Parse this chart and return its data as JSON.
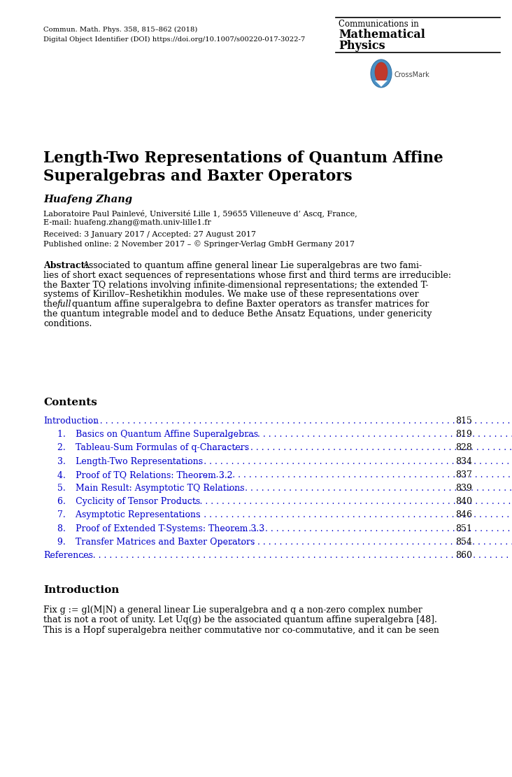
{
  "bg_color": "#ffffff",
  "journal_line1": "Commun. Math. Phys. 358, 815–862 (2018)",
  "journal_line2": "Digital Object Identifier (DOI) https://doi.org/10.1007/s00220-017-3022-7",
  "journal_name_line1": "Communications in",
  "journal_name_line2": "Mathematical",
  "journal_name_line3": "Physics",
  "title_line1": "Length-Two Representations of Quantum Affine",
  "title_line2": "Superalgebras and Baxter Operators",
  "author": "Huafeng Zhang",
  "affil1": "Laboratoire Paul Painlevé, Université Lille 1, 59655 Villeneuve d’ Ascq, France,",
  "affil2": "E-mail: huafeng.zhang@math.univ-lille1.fr",
  "received": "Received: 3 January 2017 / Accepted: 27 August 2017",
  "published": "Published online: 2 November 2017 – © Springer-Verlag GmbH Germany 2017",
  "abstract_label": "Abstract:",
  "abstract_lines": [
    "  Associated to quantum affine general linear Lie superalgebras are two fami-",
    "lies of short exact sequences of representations whose first and third terms are irreducible:",
    "the Baxter TQ relations involving infinite-dimensional representations; the extended T-",
    "systems of Kirillov–Reshetikhin modules. We make use of these representations over",
    "the [italic:full] quantum affine superalgebra to define Baxter operators as transfer matrices for",
    "the quantum integrable model and to deduce Bethe Ansatz Equations, under genericity",
    "conditions."
  ],
  "contents_label": "Contents",
  "toc": [
    {
      "label": "Introduction",
      "indent": 0,
      "page": "815"
    },
    {
      "label": "1.   Basics on Quantum Affine Superalgebras",
      "indent": 1,
      "page": "819"
    },
    {
      "label": "2.   Tableau-Sum Formulas of q-Characters",
      "indent": 1,
      "page": "828"
    },
    {
      "label": "3.   Length-Two Representations",
      "indent": 1,
      "page": "834"
    },
    {
      "label": "4.   Proof of TQ Relations: Theorem 3.2",
      "indent": 1,
      "page": "837"
    },
    {
      "label": "5.   Main Result: Asymptotic TQ Relations",
      "indent": 1,
      "page": "839"
    },
    {
      "label": "6.   Cyclicity of Tensor Products",
      "indent": 1,
      "page": "840"
    },
    {
      "label": "7.   Asymptotic Representations",
      "indent": 1,
      "page": "846"
    },
    {
      "label": "8.   Proof of Extended T-Systems: Theorem 3.3",
      "indent": 1,
      "page": "851"
    },
    {
      "label": "9.   Transfer Matrices and Baxter Operators",
      "indent": 1,
      "page": "854"
    },
    {
      "label": "References",
      "indent": 0,
      "page": "860"
    }
  ],
  "intro_label": "Introduction",
  "intro_lines": [
    "Fix g := gl(M|N) a general linear Lie superalgebra and q a non-zero complex number",
    "that is not a root of unity. Let Uq(g) be the associated quantum affine superalgebra [48].",
    "This is a Hopf superalgebra neither commutative nor co-commutative, and it can be seen"
  ],
  "toc_color": "#0000cc",
  "text_color": "#000000",
  "page_color": "#ffffff",
  "fig_width": 7.32,
  "fig_height": 11.1,
  "dpi": 100
}
